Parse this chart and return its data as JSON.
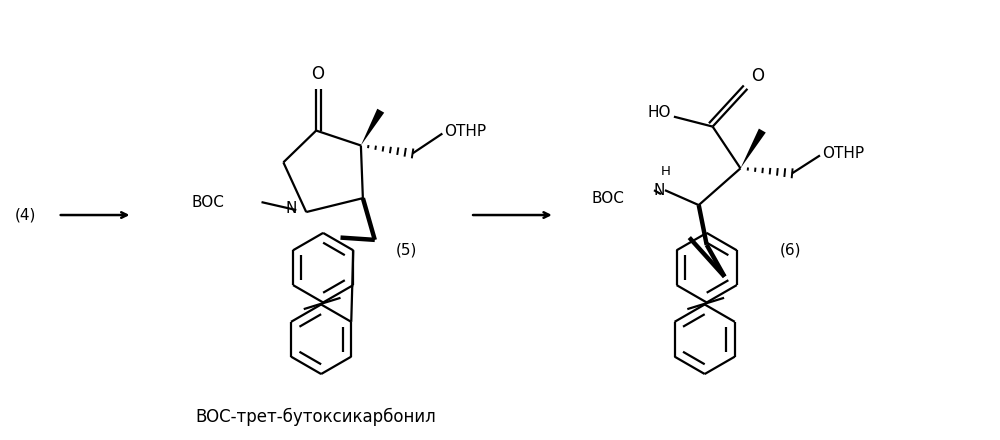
{
  "background_color": "#ffffff",
  "text_color": "#000000",
  "line_color": "#000000",
  "label_4": "(4)",
  "label_5": "(5)",
  "label_6": "(6)",
  "boc_label": "BOC",
  "othp_label": "OTHP",
  "o_label": "O",
  "n_label": "N",
  "ho_label": "HO",
  "h_label": "H",
  "boc_tret": "BOC-трет-бутоксикарбонил",
  "figsize": [
    10.0,
    4.4
  ],
  "dpi": 100
}
